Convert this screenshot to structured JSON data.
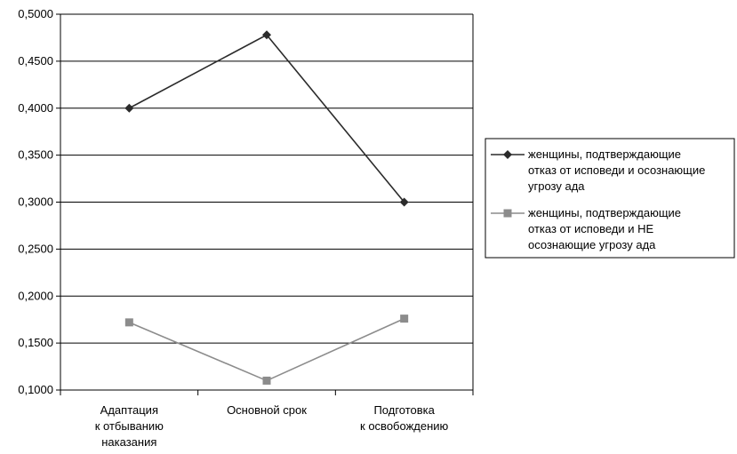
{
  "chart_data": {
    "type": "line",
    "title": "",
    "xlabel": "",
    "ylabel": "",
    "ylim": [
      0.1,
      0.5
    ],
    "y_ticks": [
      "0,1000",
      "0,1500",
      "0,2000",
      "0,2500",
      "0,3000",
      "0,3500",
      "0,4000",
      "0,4500",
      "0,5000"
    ],
    "grid": true,
    "legend_position": "right",
    "categories": [
      [
        "Адаптация",
        "к отбыванию",
        "наказания"
      ],
      [
        "Основной срок"
      ],
      [
        "Подготовка",
        "к освобождению"
      ]
    ],
    "series": [
      {
        "name_lines": [
          "женщины, подтверждающие",
          "отказ от исповеди и осознающие",
          "угрозу ада"
        ],
        "values": [
          0.4,
          0.478,
          0.3
        ],
        "color": "#2b2b2b",
        "marker": "diamond"
      },
      {
        "name_lines": [
          "женщины, подтверждающие",
          "отказ от исповеди и НЕ",
          "осознающие угрозу ада"
        ],
        "values": [
          0.172,
          0.11,
          0.176
        ],
        "color": "#8c8c8c",
        "marker": "square"
      }
    ]
  }
}
